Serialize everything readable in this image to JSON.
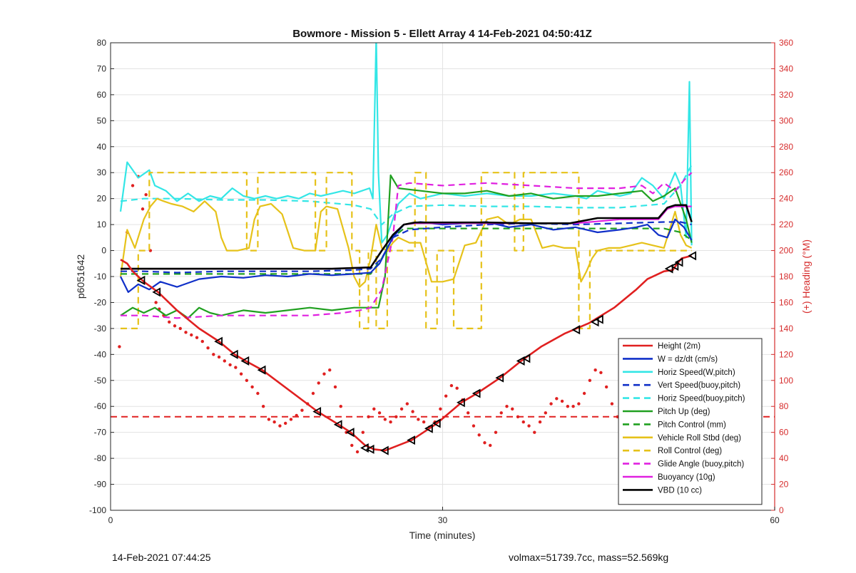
{
  "chart_data": {
    "type": "line",
    "title": "Bowmore - Mission 5 - Ellett Array 4 14-Feb-2021 04:50:41Z",
    "xlabel": "Time (minutes)",
    "ylabel": "p6051642",
    "y2label": "(+) Heading (°M)",
    "xlim": [
      0,
      60
    ],
    "ylim": [
      -100,
      80
    ],
    "y2lim": [
      0,
      360
    ],
    "xticks": [
      "0",
      "30",
      "60"
    ],
    "yticks": [
      "-100",
      "-90",
      "-80",
      "-70",
      "-60",
      "-50",
      "-40",
      "-30",
      "-20",
      "-10",
      "0",
      "10",
      "20",
      "30",
      "40",
      "50",
      "60",
      "70",
      "80"
    ],
    "y2ticks": [
      "0",
      "20",
      "40",
      "60",
      "80",
      "100",
      "120",
      "140",
      "160",
      "180",
      "200",
      "220",
      "240",
      "260",
      "280",
      "300",
      "320",
      "340",
      "360"
    ],
    "grid": true,
    "legend_position": "bottom-right",
    "colors": {
      "red": "#e02020",
      "blue": "#1030c8",
      "cyan": "#33e6e6",
      "green": "#20a020",
      "yellow": "#e6c21a",
      "magenta": "#e020e0",
      "black": "#000000",
      "heading_axis": "#d62c2c"
    },
    "series": [
      {
        "name": "Height (2m)",
        "color": "red",
        "style": "solid",
        "x": [
          0.9,
          1.5,
          2,
          3,
          4.3,
          6,
          8,
          9.8,
          11.2,
          12.2,
          13.7,
          18.7,
          20.6,
          21.7,
          23,
          23.8,
          24.8,
          27.2,
          28.8,
          29.5,
          31.7,
          33.1,
          35.2,
          37.1,
          38.9,
          41,
          43.2,
          45.5,
          47.5,
          48.5,
          50,
          50.8,
          51.2,
          51.6,
          52.5
        ],
        "y": [
          -3.5,
          -5,
          -8,
          -12,
          -16,
          -23,
          -30,
          -35,
          -40,
          -42.5,
          -46,
          -62,
          -67,
          -70,
          -75,
          -76.5,
          -77,
          -73,
          -68.5,
          -66.5,
          -58.5,
          -55,
          -49,
          -42.5,
          -37,
          -32,
          -28,
          -22,
          -15,
          -11,
          -8,
          -7.5,
          -5,
          -3,
          -2
        ]
      },
      {
        "name": "W = dz/dt (cm/s)",
        "color": "blue",
        "style": "solid",
        "x": [
          0.9,
          1.6,
          2.5,
          3.5,
          4.5,
          6,
          8,
          10,
          12,
          14,
          16,
          18,
          20,
          22,
          23.5,
          24.3,
          25.5,
          26.5,
          28,
          30,
          32,
          34,
          36,
          38,
          40,
          42,
          44,
          46,
          47.5,
          48.5,
          49.5,
          50.3,
          51,
          51.8,
          52.5
        ],
        "y": [
          -10,
          -16,
          -13,
          -15,
          -12,
          -14,
          -11,
          -10,
          -10.5,
          -9.5,
          -10,
          -9,
          -9.5,
          -9,
          -8.5,
          -5,
          5,
          10,
          11,
          10,
          10.5,
          11,
          9,
          10,
          8,
          9,
          7,
          8,
          9,
          10,
          6,
          5,
          12,
          9,
          4
        ]
      },
      {
        "name": "Horiz Speed(W,pitch)",
        "color": "cyan",
        "style": "solid",
        "x": [
          0.9,
          1.5,
          2.5,
          3.5,
          4,
          5,
          6,
          7,
          8,
          9,
          10,
          11,
          12,
          13,
          14,
          15,
          16,
          17,
          18,
          19,
          20,
          21,
          22,
          23.4,
          23.7,
          24,
          24.2,
          24.5,
          25,
          26,
          27,
          28,
          30,
          32,
          34,
          36,
          38,
          40,
          42,
          43,
          44,
          46,
          47,
          48,
          49,
          50,
          51,
          51.5,
          52,
          52.3,
          52.5
        ],
        "y": [
          15,
          34,
          28,
          31,
          25,
          23,
          19,
          22,
          19,
          21,
          20,
          24,
          21,
          20,
          21,
          20,
          21,
          20,
          22,
          21,
          22,
          23,
          22,
          24,
          20,
          82,
          30,
          3,
          6,
          18,
          22,
          20,
          22,
          21,
          22,
          21,
          21,
          22,
          21,
          20,
          23,
          21,
          22,
          28,
          25,
          20,
          30,
          25,
          5,
          65,
          2
        ]
      },
      {
        "name": "Vert Speed(buoy,pitch)",
        "color": "blue",
        "style": "dashed",
        "x": [
          0.9,
          3,
          6,
          10,
          14,
          18,
          22,
          23.5,
          24.5,
          25.5,
          27,
          30,
          34,
          38,
          42,
          46,
          50,
          51.5,
          52.5
        ],
        "y": [
          -8,
          -8,
          -8.5,
          -8,
          -8,
          -8,
          -7.5,
          -7,
          -3,
          5,
          8,
          9,
          10,
          10.5,
          10,
          10.5,
          11,
          11,
          10
        ]
      },
      {
        "name": "Horiz Speed(buoy,pitch)",
        "color": "cyan",
        "style": "dashed",
        "x": [
          0.9,
          3,
          6,
          10,
          14,
          18,
          22,
          23.5,
          24.5,
          25.5,
          27,
          30,
          34,
          38,
          42,
          46,
          50,
          51.5,
          52.5
        ],
        "y": [
          19,
          20,
          20,
          19.5,
          19.5,
          19,
          17.5,
          16,
          10,
          14,
          17,
          17.5,
          17,
          17,
          16.5,
          16.5,
          18,
          25,
          33
        ]
      },
      {
        "name": "Pitch Up (deg)",
        "color": "green",
        "style": "solid",
        "x": [
          0.9,
          2,
          3,
          4,
          5,
          6,
          7,
          8,
          9,
          10,
          12,
          14,
          16,
          18,
          20,
          22,
          23.5,
          24.2,
          24.8,
          25.3,
          26,
          28,
          30,
          32,
          34,
          36,
          38,
          40,
          42,
          44,
          46,
          48,
          49,
          50,
          51,
          52,
          52.5
        ],
        "y": [
          -25,
          -22,
          -24,
          -22,
          -25,
          -23,
          -26,
          -22,
          -24,
          -25,
          -23,
          -24,
          -23,
          -22,
          -23,
          -22,
          -22,
          -22,
          -10,
          29,
          24,
          23,
          22,
          22,
          23,
          21,
          22,
          20,
          21,
          21,
          22,
          23,
          19,
          21,
          24,
          12,
          3
        ]
      },
      {
        "name": "Pitch Control (mm)",
        "color": "green",
        "style": "dashed",
        "x": [
          0.9,
          4,
          8,
          12,
          16,
          20,
          23.5,
          24.5,
          25.5,
          26.5,
          30,
          34,
          38,
          42,
          46,
          50,
          51.5,
          52.5
        ],
        "y": [
          -9,
          -9,
          -9,
          -9,
          -9,
          -9,
          -9,
          -3,
          5,
          8.5,
          8.5,
          8.5,
          8.5,
          8.5,
          8.5,
          8.5,
          7,
          4
        ]
      },
      {
        "name": "Vehicle Roll Stbd (deg)",
        "color": "yellow",
        "style": "solid",
        "x": [
          0.9,
          1.5,
          2.2,
          3,
          3.6,
          4.2,
          4.8,
          5.5,
          6.5,
          7.5,
          8.5,
          9.5,
          10,
          10.5,
          11.5,
          12.5,
          13,
          13.5,
          14.5,
          15.5,
          16.5,
          17.5,
          18.5,
          19,
          19.5,
          20.5,
          21.5,
          22,
          22.5,
          23,
          23.5,
          24,
          24.5,
          25,
          25.5,
          26,
          27,
          28,
          29,
          30,
          31,
          32,
          33,
          34,
          35,
          36,
          37,
          38,
          39,
          40,
          41,
          42,
          42.5,
          43,
          43.5,
          44,
          45,
          46,
          47,
          48,
          49,
          50,
          51,
          51.5,
          52,
          52.5
        ],
        "y": [
          -10,
          8,
          1,
          12,
          17,
          20,
          19,
          18,
          17,
          15,
          19,
          15,
          5,
          0,
          0,
          1,
          12,
          17,
          18,
          14,
          1,
          0,
          0,
          15,
          17,
          16,
          1,
          -10,
          -14,
          -12,
          -3,
          10,
          1,
          0,
          3,
          5,
          3,
          3,
          -12,
          -12,
          -11,
          2,
          3,
          12,
          13,
          10,
          12,
          12,
          1,
          2,
          1,
          1,
          -12,
          -8,
          -3,
          0,
          1,
          1,
          2,
          3,
          2,
          1,
          15,
          6,
          2,
          1
        ]
      },
      {
        "name": "Roll Control (deg)",
        "color": "yellow",
        "style": "dashed",
        "x": [
          0.9,
          2.5,
          2.5,
          3.5,
          3.5,
          5.5,
          5.5,
          10.3,
          10.3,
          11.3,
          11.3,
          12.3,
          12.3,
          13.3,
          13.3,
          18.5,
          18.5,
          19.5,
          19.5,
          21.8,
          21.8,
          22.5,
          22.5,
          23.3,
          23.3,
          24,
          24,
          25,
          25,
          27.5,
          27.5,
          28.5,
          28.5,
          29.5,
          29.5,
          31,
          31,
          33.5,
          33.5,
          36.5,
          36.5,
          37.3,
          37.3,
          42.3,
          42.3,
          43.3,
          43.3,
          47,
          47,
          50.5,
          50.5,
          52.5
        ],
        "y": [
          -30,
          -30,
          0,
          0,
          30,
          30,
          30,
          30,
          30,
          30,
          30,
          30,
          0,
          0,
          30,
          30,
          0,
          0,
          30,
          30,
          0,
          0,
          -30,
          -30,
          0,
          0,
          -30,
          -30,
          0,
          0,
          30,
          30,
          -30,
          -30,
          0,
          0,
          -30,
          -30,
          30,
          30,
          0,
          0,
          30,
          30,
          -30,
          -30,
          0,
          0,
          0,
          0,
          0,
          0
        ]
      },
      {
        "name": "Glide Angle (buoy,pitch)",
        "color": "magenta",
        "style": "dashed",
        "x": [
          0.9,
          3,
          6,
          10,
          14,
          18,
          21,
          22.5,
          23.5,
          24.5,
          25.5,
          26,
          27,
          30,
          34,
          38,
          42,
          46,
          48,
          49,
          50,
          51,
          52,
          52.5
        ],
        "y": [
          -25,
          -25,
          -26,
          -25,
          -25,
          -25,
          -24,
          -23,
          -22,
          -15,
          5,
          25,
          26,
          25,
          26,
          25,
          24,
          24,
          25,
          22,
          26,
          23,
          28,
          30
        ]
      },
      {
        "name": "Buoyancy (10g)",
        "color": "magenta",
        "style": "solid",
        "x": [
          0.9,
          4,
          8,
          12,
          16,
          20,
          23.5,
          24.5,
          25.5,
          26.5,
          27.5,
          30,
          34,
          38,
          42,
          46,
          49.5,
          50.3,
          51,
          52.5
        ],
        "y": [
          -7,
          -7,
          -7,
          -7,
          -7,
          -7,
          -6.5,
          0,
          6,
          10,
          10.5,
          10.5,
          10.5,
          10.5,
          10.5,
          12,
          12,
          16,
          17,
          17
        ]
      },
      {
        "name": "VBD (10 cc)",
        "color": "black",
        "style": "solid",
        "x": [
          0.9,
          4,
          8,
          12,
          16,
          20,
          23.5,
          24.5,
          25.5,
          26.5,
          27.5,
          30,
          34,
          38,
          41.5,
          44,
          46,
          49.5,
          50.3,
          51,
          52,
          52.5
        ],
        "y": [
          -7,
          -7,
          -7,
          -7,
          -7,
          -7,
          -6.5,
          0,
          6,
          10,
          10.8,
          10.8,
          10.8,
          10.5,
          10.5,
          12.5,
          12.5,
          12.5,
          16.5,
          17.5,
          17.5,
          11
        ]
      }
    ],
    "heading": {
      "color": "red",
      "style": "dots",
      "axis": "right",
      "x": [
        0.8,
        1.5,
        2.0,
        2.5,
        2.9,
        3.2,
        3.6,
        4.1,
        4.4,
        4.8,
        5.3,
        5.8,
        6.3,
        6.8,
        7.3,
        7.8,
        8.3,
        8.8,
        9.3,
        9.8,
        10.3,
        10.8,
        11.3,
        11.8,
        12.3,
        12.8,
        13.3,
        13.8,
        14.3,
        14.8,
        15.3,
        15.8,
        16.3,
        16.8,
        17.3,
        17.8,
        18.3,
        18.8,
        19.3,
        19.8,
        20.3,
        20.8,
        21.3,
        21.8,
        22.3,
        22.8,
        23.3,
        23.8,
        24.3,
        24.8,
        25.3,
        25.8,
        26.3,
        26.8,
        27.3,
        27.8,
        28.3,
        28.8,
        29.3,
        29.8,
        30.3,
        30.8,
        31.3,
        31.8,
        32.3,
        32.8,
        33.3,
        33.8,
        34.3,
        34.8,
        35.3,
        35.8,
        36.3,
        36.8,
        37.3,
        37.8,
        38.3,
        38.8,
        39.3,
        39.8,
        40.3,
        40.8,
        41.3,
        41.8,
        42.3,
        42.8,
        43.3,
        43.8,
        44.3,
        44.8,
        45.3,
        45.8,
        46.3,
        46.8,
        47.3,
        47.8,
        48.3,
        48.8,
        49.3,
        49.8,
        50.3,
        50.8,
        51.3
      ],
      "y": [
        126,
        214,
        250,
        257,
        232,
        243,
        200,
        160,
        155,
        150,
        145,
        142,
        140,
        137,
        135,
        133,
        130,
        125,
        120,
        118,
        115,
        112,
        110,
        105,
        100,
        95,
        90,
        80,
        70,
        68,
        65,
        67,
        70,
        73,
        77,
        82,
        90,
        98,
        105,
        108,
        95,
        80,
        60,
        50,
        45,
        60,
        72,
        78,
        75,
        70,
        68,
        72,
        78,
        82,
        76,
        70,
        68,
        64,
        68,
        78,
        88,
        96,
        94,
        85,
        75,
        65,
        58,
        52,
        50,
        60,
        75,
        80,
        78,
        72,
        68,
        65,
        60,
        68,
        75,
        82,
        86,
        84,
        80,
        80,
        82,
        90,
        100,
        108,
        106,
        95,
        82,
        72,
        65,
        68,
        75,
        80,
        76,
        72,
        70,
        68,
        65,
        60,
        55
      ]
    },
    "reference_line": {
      "name": "",
      "color": "red",
      "style": "dashed",
      "y": -64
    },
    "markers": {
      "on": "Height (2m)",
      "shape": "triangle",
      "color": "black",
      "x": [
        2.8,
        4.2,
        9.8,
        11.2,
        12.2,
        13.7,
        18.7,
        20.6,
        21.7,
        23.0,
        23.5,
        24.8,
        27.2,
        28.8,
        29.5,
        31.7,
        33.1,
        35.2,
        37.1,
        37.6,
        42.1,
        43.8,
        44.2,
        50.5,
        51.0,
        51.4,
        52.6
      ],
      "y": [
        -11.5,
        -16,
        -35,
        -40,
        -42.5,
        -46,
        -62,
        -67,
        -70,
        -76,
        -76.5,
        -77,
        -73,
        -68.5,
        -66.5,
        -58.5,
        -55,
        -49,
        -42.5,
        -41.5,
        -30.5,
        -27.5,
        -26.5,
        -7,
        -6,
        -4.5,
        -2
      ]
    }
  },
  "footer": {
    "left": "14-Feb-2021 07:44:25",
    "right": "volmax=51739.7cc, mass=52.569kg"
  }
}
